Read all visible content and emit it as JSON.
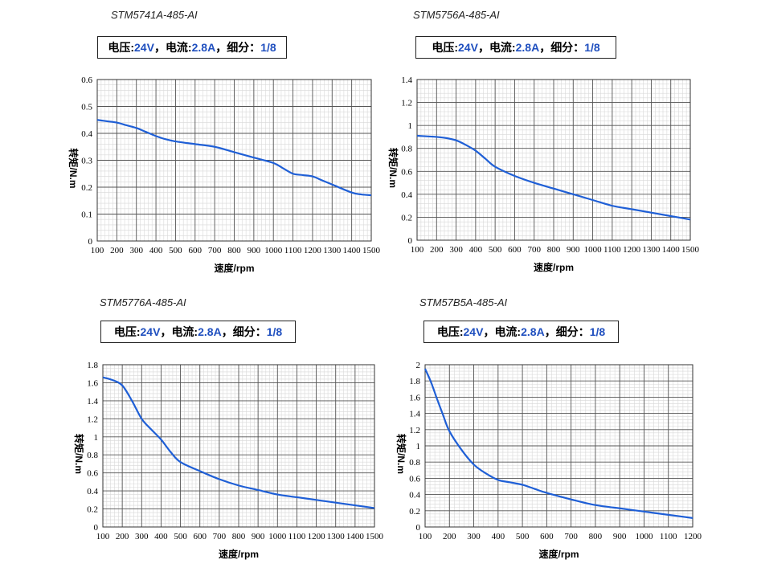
{
  "chart_data": [
    {
      "type": "line",
      "model": "STM5741A-485-AI",
      "spec": {
        "voltage_label": "电压:",
        "voltage": "24V",
        "sep1": "，",
        "current_label": "电流:",
        "current": "2.8A",
        "sep2": "，",
        "microstep_label": "细分：",
        "microstep": "1/8"
      },
      "xlabel": "速度/rpm",
      "ylabel": "转矩/N.m",
      "xlim": [
        100,
        1500
      ],
      "ylim": [
        0,
        0.6
      ],
      "xticks": [
        100,
        200,
        300,
        400,
        500,
        600,
        700,
        800,
        900,
        1000,
        1100,
        1200,
        1300,
        1400,
        1500
      ],
      "yticks": [
        0,
        0.1,
        0.2,
        0.3,
        0.4,
        0.5,
        0.6
      ],
      "ytick_labels": [
        "0",
        "0.1",
        "0.2",
        "0.3",
        "0.4",
        "0.5",
        "0.6"
      ],
      "x": [
        100,
        150,
        200,
        250,
        300,
        350,
        400,
        450,
        500,
        600,
        700,
        800,
        900,
        1000,
        1050,
        1100,
        1150,
        1200,
        1250,
        1300,
        1400,
        1450,
        1500
      ],
      "y": [
        0.45,
        0.445,
        0.44,
        0.43,
        0.42,
        0.405,
        0.39,
        0.378,
        0.37,
        0.36,
        0.35,
        0.33,
        0.31,
        0.29,
        0.27,
        0.25,
        0.245,
        0.24,
        0.225,
        0.21,
        0.18,
        0.173,
        0.17
      ],
      "line_color": "#1f5fd6"
    },
    {
      "type": "line",
      "model": "STM5756A-485-AI",
      "spec": {
        "voltage_label": "电压:",
        "voltage": "24V",
        "sep1": "，",
        "current_label": "电流:",
        "current": "2.8A",
        "sep2": "，",
        "microstep_label": "细分：",
        "microstep": "1/8"
      },
      "xlabel": "速度/rpm",
      "ylabel": "转矩/N.m",
      "xlim": [
        100,
        1500
      ],
      "ylim": [
        0,
        1.4
      ],
      "xticks": [
        100,
        200,
        300,
        400,
        500,
        600,
        700,
        800,
        900,
        1000,
        1100,
        1200,
        1300,
        1400,
        1500
      ],
      "yticks": [
        0,
        0.2,
        0.4,
        0.6,
        0.8,
        1,
        1.2,
        1.4
      ],
      "ytick_labels": [
        "0",
        "0.2",
        "0.4",
        "0.6",
        "0.8",
        "1",
        "1.2",
        "1.4"
      ],
      "x": [
        100,
        150,
        200,
        250,
        300,
        350,
        400,
        450,
        500,
        600,
        700,
        800,
        900,
        1000,
        1100,
        1200,
        1300,
        1400,
        1500
      ],
      "y": [
        0.91,
        0.905,
        0.9,
        0.89,
        0.87,
        0.83,
        0.78,
        0.71,
        0.64,
        0.56,
        0.5,
        0.45,
        0.4,
        0.35,
        0.3,
        0.27,
        0.24,
        0.21,
        0.18
      ],
      "line_color": "#1f5fd6"
    },
    {
      "type": "line",
      "model": "STM5776A-485-AI",
      "spec": {
        "voltage_label": "电压:",
        "voltage": "24V",
        "sep1": "，",
        "current_label": "电流:",
        "current": "2.8A",
        "sep2": "，",
        "microstep_label": "细分：",
        "microstep": "1/8"
      },
      "xlabel": "速度/rpm",
      "ylabel": "转矩/N.m",
      "xlim": [
        100,
        1500
      ],
      "ylim": [
        0,
        1.8
      ],
      "xticks": [
        100,
        200,
        300,
        400,
        500,
        600,
        700,
        800,
        900,
        1000,
        1100,
        1200,
        1300,
        1400,
        1500
      ],
      "yticks": [
        0,
        0.2,
        0.4,
        0.6,
        0.8,
        1,
        1.2,
        1.4,
        1.6,
        1.8
      ],
      "ytick_labels": [
        "0",
        "0.2",
        "0.4",
        "0.6",
        "0.8",
        "1",
        "1.2",
        "1.4",
        "1.6",
        "1.8"
      ],
      "x": [
        100,
        150,
        200,
        250,
        300,
        350,
        400,
        450,
        500,
        600,
        700,
        800,
        900,
        1000,
        1100,
        1200,
        1300,
        1400,
        1500
      ],
      "y": [
        1.66,
        1.63,
        1.57,
        1.4,
        1.2,
        1.08,
        0.97,
        0.83,
        0.72,
        0.62,
        0.53,
        0.46,
        0.41,
        0.36,
        0.33,
        0.3,
        0.27,
        0.24,
        0.21
      ],
      "line_color": "#1f5fd6"
    },
    {
      "type": "line",
      "model": "STM57B5A-485-AI",
      "spec": {
        "voltage_label": "电压:",
        "voltage": "24V",
        "sep1": "，",
        "current_label": "电流:",
        "current": "2.8A",
        "sep2": "，",
        "microstep_label": "细分：",
        "microstep": "1/8"
      },
      "xlabel": "速度/rpm",
      "ylabel": "转矩/N.m",
      "xlim": [
        100,
        1200
      ],
      "ylim": [
        0,
        2
      ],
      "xticks": [
        100,
        200,
        300,
        400,
        500,
        600,
        700,
        800,
        900,
        1000,
        1100,
        1200
      ],
      "yticks": [
        0,
        0.2,
        0.4,
        0.6,
        0.8,
        1,
        1.2,
        1.4,
        1.6,
        1.8,
        2
      ],
      "ytick_labels": [
        "0",
        "0.2",
        "0.4",
        "0.6",
        "0.8",
        "1",
        "1.2",
        "1.4",
        "1.6",
        "1.8",
        "2"
      ],
      "x": [
        100,
        125,
        150,
        175,
        200,
        250,
        300,
        350,
        400,
        450,
        500,
        550,
        600,
        700,
        800,
        900,
        1000,
        1100,
        1200
      ],
      "y": [
        1.95,
        1.78,
        1.57,
        1.37,
        1.18,
        0.95,
        0.77,
        0.66,
        0.58,
        0.55,
        0.52,
        0.47,
        0.42,
        0.34,
        0.27,
        0.23,
        0.19,
        0.15,
        0.11
      ],
      "line_color": "#1f5fd6"
    }
  ]
}
